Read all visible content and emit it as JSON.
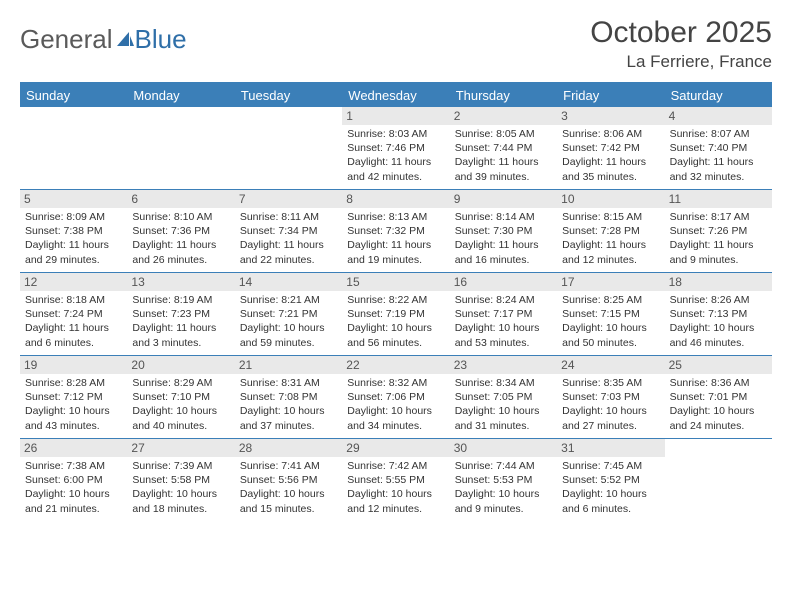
{
  "logo": {
    "text1": "General",
    "text2": "Blue"
  },
  "title": "October 2025",
  "location": "La Ferriere, France",
  "header_bg": "#3b7fb8",
  "day_names": [
    "Sunday",
    "Monday",
    "Tuesday",
    "Wednesday",
    "Thursday",
    "Friday",
    "Saturday"
  ],
  "weeks": [
    [
      null,
      null,
      null,
      {
        "n": "1",
        "sr": "8:03 AM",
        "ss": "7:46 PM",
        "dl": "11 hours and 42 minutes."
      },
      {
        "n": "2",
        "sr": "8:05 AM",
        "ss": "7:44 PM",
        "dl": "11 hours and 39 minutes."
      },
      {
        "n": "3",
        "sr": "8:06 AM",
        "ss": "7:42 PM",
        "dl": "11 hours and 35 minutes."
      },
      {
        "n": "4",
        "sr": "8:07 AM",
        "ss": "7:40 PM",
        "dl": "11 hours and 32 minutes."
      }
    ],
    [
      {
        "n": "5",
        "sr": "8:09 AM",
        "ss": "7:38 PM",
        "dl": "11 hours and 29 minutes."
      },
      {
        "n": "6",
        "sr": "8:10 AM",
        "ss": "7:36 PM",
        "dl": "11 hours and 26 minutes."
      },
      {
        "n": "7",
        "sr": "8:11 AM",
        "ss": "7:34 PM",
        "dl": "11 hours and 22 minutes."
      },
      {
        "n": "8",
        "sr": "8:13 AM",
        "ss": "7:32 PM",
        "dl": "11 hours and 19 minutes."
      },
      {
        "n": "9",
        "sr": "8:14 AM",
        "ss": "7:30 PM",
        "dl": "11 hours and 16 minutes."
      },
      {
        "n": "10",
        "sr": "8:15 AM",
        "ss": "7:28 PM",
        "dl": "11 hours and 12 minutes."
      },
      {
        "n": "11",
        "sr": "8:17 AM",
        "ss": "7:26 PM",
        "dl": "11 hours and 9 minutes."
      }
    ],
    [
      {
        "n": "12",
        "sr": "8:18 AM",
        "ss": "7:24 PM",
        "dl": "11 hours and 6 minutes."
      },
      {
        "n": "13",
        "sr": "8:19 AM",
        "ss": "7:23 PM",
        "dl": "11 hours and 3 minutes."
      },
      {
        "n": "14",
        "sr": "8:21 AM",
        "ss": "7:21 PM",
        "dl": "10 hours and 59 minutes."
      },
      {
        "n": "15",
        "sr": "8:22 AM",
        "ss": "7:19 PM",
        "dl": "10 hours and 56 minutes."
      },
      {
        "n": "16",
        "sr": "8:24 AM",
        "ss": "7:17 PM",
        "dl": "10 hours and 53 minutes."
      },
      {
        "n": "17",
        "sr": "8:25 AM",
        "ss": "7:15 PM",
        "dl": "10 hours and 50 minutes."
      },
      {
        "n": "18",
        "sr": "8:26 AM",
        "ss": "7:13 PM",
        "dl": "10 hours and 46 minutes."
      }
    ],
    [
      {
        "n": "19",
        "sr": "8:28 AM",
        "ss": "7:12 PM",
        "dl": "10 hours and 43 minutes."
      },
      {
        "n": "20",
        "sr": "8:29 AM",
        "ss": "7:10 PM",
        "dl": "10 hours and 40 minutes."
      },
      {
        "n": "21",
        "sr": "8:31 AM",
        "ss": "7:08 PM",
        "dl": "10 hours and 37 minutes."
      },
      {
        "n": "22",
        "sr": "8:32 AM",
        "ss": "7:06 PM",
        "dl": "10 hours and 34 minutes."
      },
      {
        "n": "23",
        "sr": "8:34 AM",
        "ss": "7:05 PM",
        "dl": "10 hours and 31 minutes."
      },
      {
        "n": "24",
        "sr": "8:35 AM",
        "ss": "7:03 PM",
        "dl": "10 hours and 27 minutes."
      },
      {
        "n": "25",
        "sr": "8:36 AM",
        "ss": "7:01 PM",
        "dl": "10 hours and 24 minutes."
      }
    ],
    [
      {
        "n": "26",
        "sr": "7:38 AM",
        "ss": "6:00 PM",
        "dl": "10 hours and 21 minutes."
      },
      {
        "n": "27",
        "sr": "7:39 AM",
        "ss": "5:58 PM",
        "dl": "10 hours and 18 minutes."
      },
      {
        "n": "28",
        "sr": "7:41 AM",
        "ss": "5:56 PM",
        "dl": "10 hours and 15 minutes."
      },
      {
        "n": "29",
        "sr": "7:42 AM",
        "ss": "5:55 PM",
        "dl": "10 hours and 12 minutes."
      },
      {
        "n": "30",
        "sr": "7:44 AM",
        "ss": "5:53 PM",
        "dl": "10 hours and 9 minutes."
      },
      {
        "n": "31",
        "sr": "7:45 AM",
        "ss": "5:52 PM",
        "dl": "10 hours and 6 minutes."
      },
      null
    ]
  ]
}
